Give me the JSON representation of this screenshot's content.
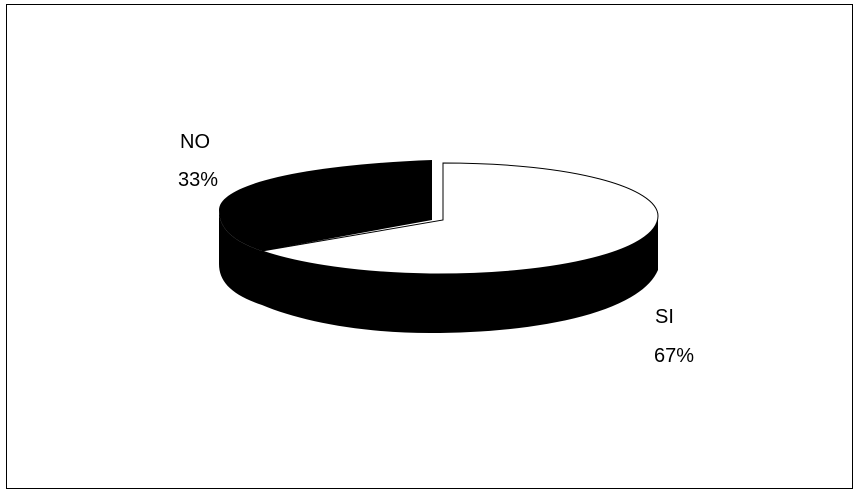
{
  "chart_data": {
    "type": "pie",
    "style": "3d-exploded",
    "slices": [
      {
        "label": "NO",
        "percent_label": "33%",
        "value": 33,
        "color": "#000000"
      },
      {
        "label": "SI",
        "percent_label": "67%",
        "value": 67,
        "color": "#ffffff"
      }
    ],
    "legend": "none"
  }
}
